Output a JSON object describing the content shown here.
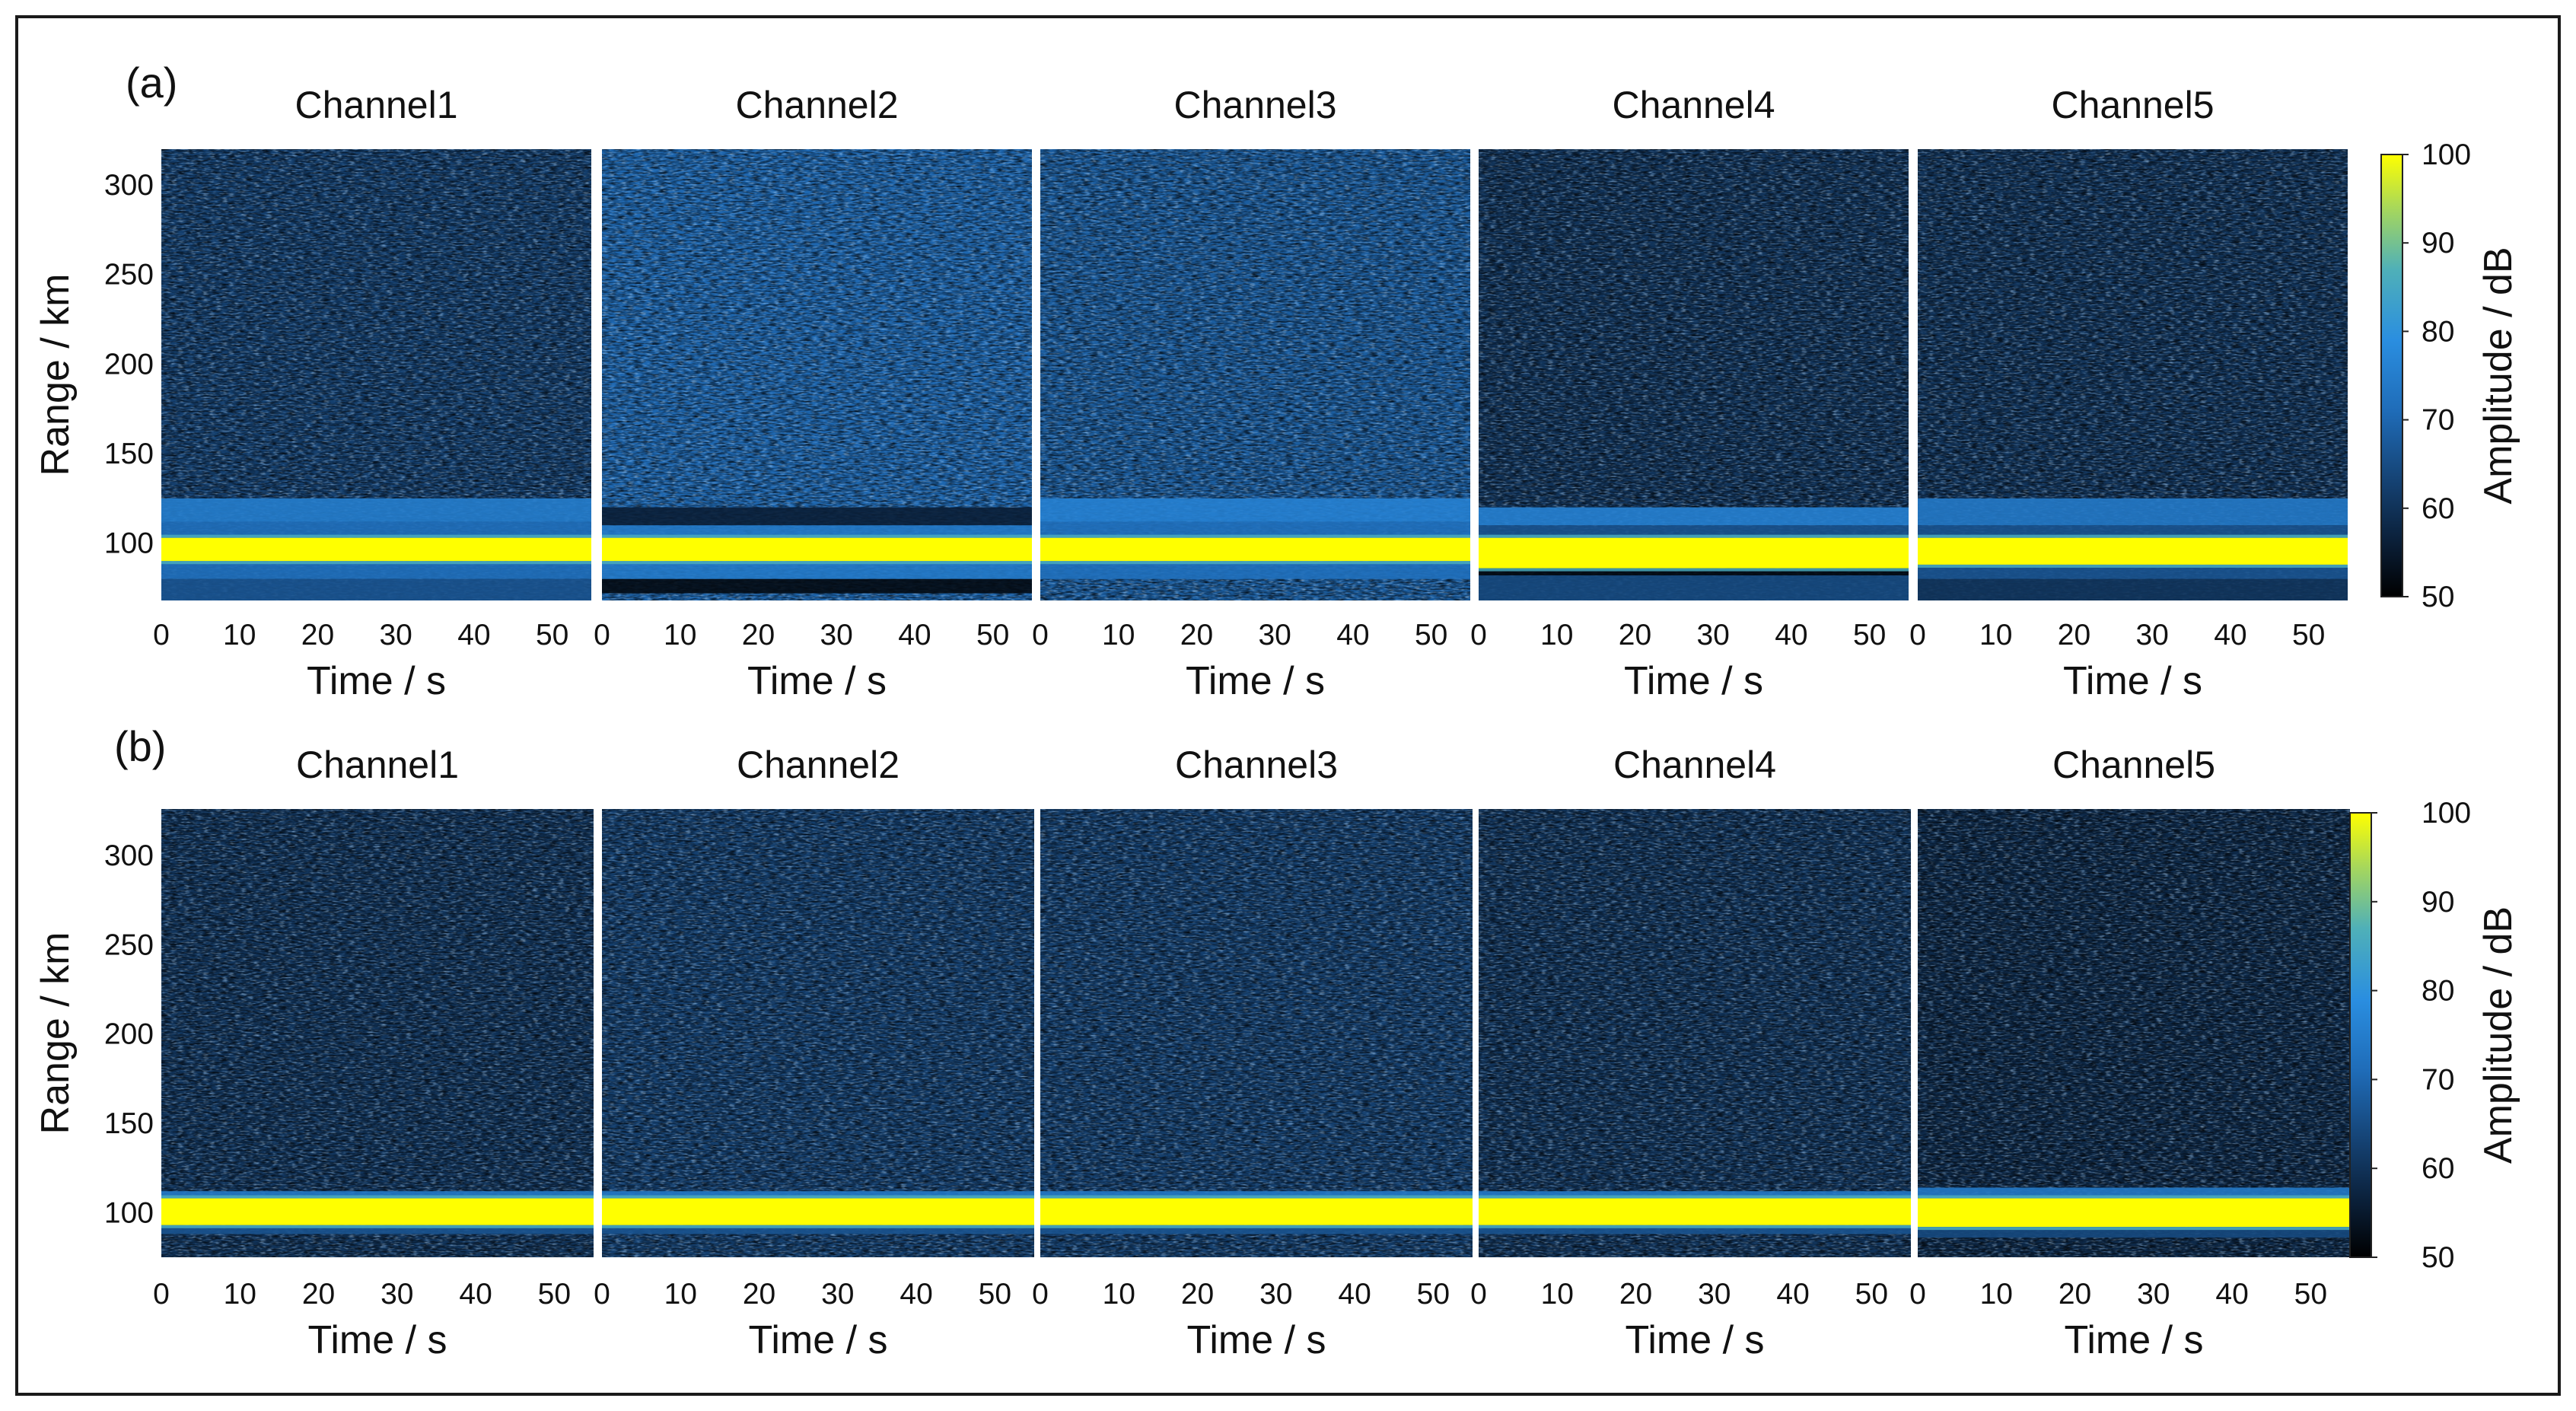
{
  "chart_data": [
    {
      "type": "heatmap",
      "panel_label": "(a)",
      "xlabel": "Time / s",
      "ylabel": "Range / km",
      "xlim": [
        0,
        55
      ],
      "ylim": [
        68,
        320
      ],
      "xticks": [
        "0",
        "10",
        "20",
        "30",
        "40",
        "50"
      ],
      "yticks": [
        "100",
        "150",
        "200",
        "250",
        "300"
      ],
      "channels": [
        {
          "title": "Channel1",
          "echo_band_km": [
            90,
            103
          ],
          "bg_db": 62,
          "band_db": 100,
          "sidelobes": [
            [
              103,
              112,
              72
            ],
            [
              112,
              125,
              75
            ],
            [
              80,
              90,
              72
            ],
            [
              68,
              80,
              66
            ]
          ]
        },
        {
          "title": "Channel2",
          "echo_band_km": [
            90,
            103
          ],
          "bg_db": 70,
          "band_db": 100,
          "sidelobes": [
            [
              103,
              110,
              74
            ],
            [
              110,
              120,
              56
            ],
            [
              80,
              90,
              74
            ],
            [
              72,
              80,
              52
            ]
          ]
        },
        {
          "title": "Channel3",
          "echo_band_km": [
            90,
            103
          ],
          "bg_db": 68,
          "band_db": 100,
          "sidelobes": [
            [
              103,
              112,
              72
            ],
            [
              112,
              125,
              76
            ],
            [
              80,
              90,
              72
            ]
          ]
        },
        {
          "title": "Channel4",
          "echo_band_km": [
            86,
            103
          ],
          "bg_db": 60,
          "band_db": 100,
          "sidelobes": [
            [
              103,
              110,
              66
            ],
            [
              110,
              120,
              76
            ],
            [
              82,
              86,
              52
            ],
            [
              68,
              82,
              64
            ]
          ]
        },
        {
          "title": "Channel5",
          "echo_band_km": [
            88,
            103
          ],
          "bg_db": 60,
          "band_db": 100,
          "sidelobes": [
            [
              103,
              110,
              66
            ],
            [
              110,
              125,
              74
            ],
            [
              80,
              88,
              66
            ],
            [
              68,
              80,
              60
            ]
          ]
        }
      ],
      "colorbar": {
        "label": "Amplitude / dB",
        "ticks": [
          "50",
          "60",
          "70",
          "80",
          "90",
          "100"
        ],
        "range": [
          50,
          100
        ]
      }
    },
    {
      "type": "heatmap",
      "panel_label": "(b)",
      "xlabel": "Time / s",
      "ylabel": "Range / km",
      "xlim": [
        0,
        55
      ],
      "ylim": [
        75,
        326
      ],
      "xticks": [
        "0",
        "10",
        "20",
        "30",
        "40",
        "50"
      ],
      "yticks": [
        "100",
        "150",
        "200",
        "250",
        "300"
      ],
      "channels": [
        {
          "title": "Channel1",
          "echo_band_km": [
            93,
            108
          ],
          "bg_db": 60,
          "band_db": 100,
          "sidelobes": [
            [
              108,
              112,
              74
            ],
            [
              88,
              93,
              66
            ]
          ]
        },
        {
          "title": "Channel2",
          "echo_band_km": [
            93,
            108
          ],
          "bg_db": 62,
          "band_db": 100,
          "sidelobes": [
            [
              108,
              112,
              74
            ],
            [
              88,
              93,
              66
            ]
          ]
        },
        {
          "title": "Channel3",
          "echo_band_km": [
            93,
            108
          ],
          "bg_db": 62,
          "band_db": 100,
          "sidelobes": [
            [
              108,
              112,
              74
            ],
            [
              88,
              93,
              66
            ]
          ]
        },
        {
          "title": "Channel4",
          "echo_band_km": [
            93,
            108
          ],
          "bg_db": 60,
          "band_db": 100,
          "sidelobes": [
            [
              108,
              112,
              74
            ],
            [
              88,
              93,
              66
            ]
          ]
        },
        {
          "title": "Channel5",
          "echo_band_km": [
            92,
            108
          ],
          "bg_db": 58,
          "band_db": 100,
          "sidelobes": [
            [
              108,
              114,
              74
            ],
            [
              86,
              92,
              64
            ]
          ]
        }
      ],
      "colorbar": {
        "label": "Amplitude / dB",
        "ticks": [
          "50",
          "60",
          "70",
          "80",
          "90",
          "100"
        ],
        "range": [
          50,
          100
        ]
      }
    }
  ]
}
